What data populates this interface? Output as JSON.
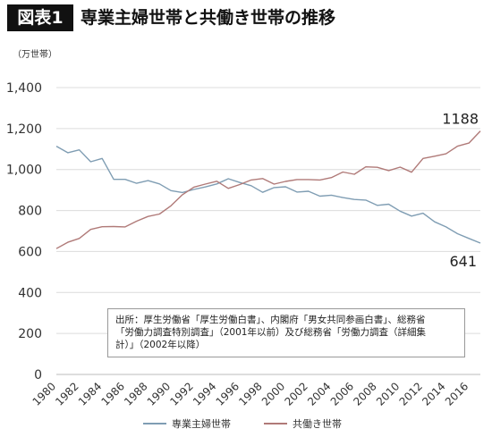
{
  "header": {
    "badge": "図表1",
    "title": "専業主婦世帯と共働き世帯の推移"
  },
  "note": {
    "line1": "出所：厚生労働省「厚生労働白書」、内閣府「男女共同参画白書」、総務省",
    "line2": "「労働力調査特別調査」（2001年以前）及び総務省「労働力調査（詳細集",
    "line3": "計）」（2002年以降）"
  },
  "chart_data": {
    "type": "line",
    "ylabel": "（万世帯）",
    "ylim": [
      0,
      1400
    ],
    "yticks": [
      "0",
      "200",
      "400",
      "600",
      "800",
      "1,000",
      "1,200",
      "1,400"
    ],
    "x": [
      1980,
      1981,
      1982,
      1983,
      1984,
      1985,
      1986,
      1987,
      1988,
      1989,
      1990,
      1991,
      1992,
      1993,
      1994,
      1995,
      1996,
      1997,
      1998,
      1999,
      2000,
      2001,
      2002,
      2003,
      2004,
      2005,
      2006,
      2007,
      2008,
      2009,
      2010,
      2011,
      2012,
      2013,
      2014,
      2015,
      2016,
      2017
    ],
    "xticks": [
      "1980",
      "1982",
      "1984",
      "1986",
      "1988",
      "1990",
      "1992",
      "1994",
      "1996",
      "1998",
      "2000",
      "2002",
      "2004",
      "2006",
      "2008",
      "2010",
      "2012",
      "2014",
      "2016"
    ],
    "grid": true,
    "legend_position": "bottom",
    "series": [
      {
        "name": "専業主婦世帯",
        "color": "#7f9db3",
        "values": [
          1114,
          1082,
          1096,
          1038,
          1054,
          952,
          952,
          933,
          946,
          930,
          897,
          888,
          903,
          915,
          930,
          955,
          937,
          921,
          889,
          912,
          916,
          890,
          894,
          870,
          875,
          863,
          854,
          851,
          825,
          831,
          797,
          773,
          787,
          745,
          720,
          687,
          664,
          641
        ]
      },
      {
        "name": "共働き世帯",
        "color": "#b07a78",
        "values": [
          614,
          645,
          664,
          708,
          721,
          722,
          720,
          748,
          771,
          783,
          823,
          877,
          914,
          929,
          943,
          908,
          927,
          949,
          956,
          929,
          942,
          951,
          951,
          949,
          961,
          988,
          977,
          1013,
          1011,
          995,
          1012,
          987,
          1054,
          1065,
          1077,
          1114,
          1129,
          1188
        ]
      }
    ],
    "annotations": [
      {
        "text": "1188"
      },
      {
        "text": "641"
      }
    ]
  }
}
